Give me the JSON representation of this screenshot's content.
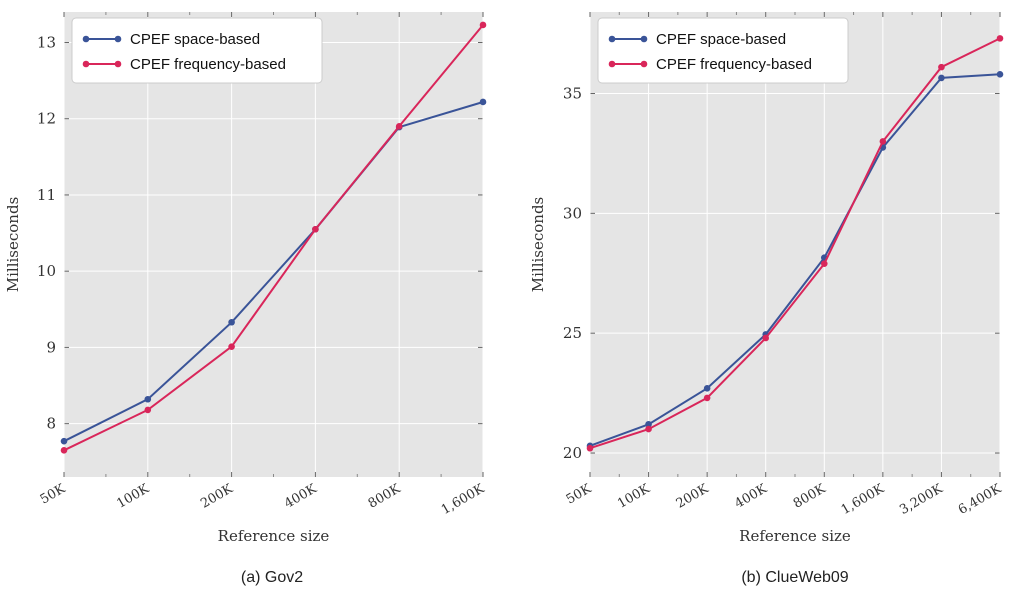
{
  "colors": {
    "space": "#3a5498",
    "frequency": "#d9265a",
    "plot_bg": "#e5e5e5",
    "grid": "#ffffff"
  },
  "chart_data": [
    {
      "type": "line",
      "caption": "(a) Gov2",
      "xlabel": "Reference size",
      "ylabel": "Milliseconds",
      "categories": [
        "50K",
        "100K",
        "200K",
        "400K",
        "800K",
        "1,600K"
      ],
      "x_scale": "log2",
      "ylim": [
        7.3,
        13.4
      ],
      "yticks": [
        8,
        9,
        10,
        11,
        12,
        13
      ],
      "grid": true,
      "legend_position": "top-left",
      "series": [
        {
          "name": "CPEF space-based",
          "color": "#3a5498",
          "values": [
            7.77,
            8.32,
            9.33,
            10.55,
            11.89,
            12.22
          ]
        },
        {
          "name": "CPEF frequency-based",
          "color": "#d9265a",
          "values": [
            7.65,
            8.18,
            9.01,
            10.55,
            11.9,
            13.23
          ]
        }
      ]
    },
    {
      "type": "line",
      "caption": "(b) ClueWeb09",
      "xlabel": "Reference size",
      "ylabel": "Milliseconds",
      "categories": [
        "50K",
        "100K",
        "200K",
        "400K",
        "800K",
        "1,600K",
        "3,200K",
        "6,400K"
      ],
      "x_scale": "log2",
      "ylim": [
        19.0,
        38.4
      ],
      "yticks": [
        20,
        25,
        30,
        35
      ],
      "grid": true,
      "legend_position": "top-left",
      "series": [
        {
          "name": "CPEF space-based",
          "color": "#3a5498",
          "values": [
            20.3,
            21.2,
            22.7,
            24.95,
            28.15,
            32.75,
            35.65,
            35.8
          ]
        },
        {
          "name": "CPEF frequency-based",
          "color": "#d9265a",
          "values": [
            20.2,
            21.0,
            22.3,
            24.8,
            27.9,
            33.0,
            36.1,
            37.3
          ]
        }
      ]
    }
  ]
}
